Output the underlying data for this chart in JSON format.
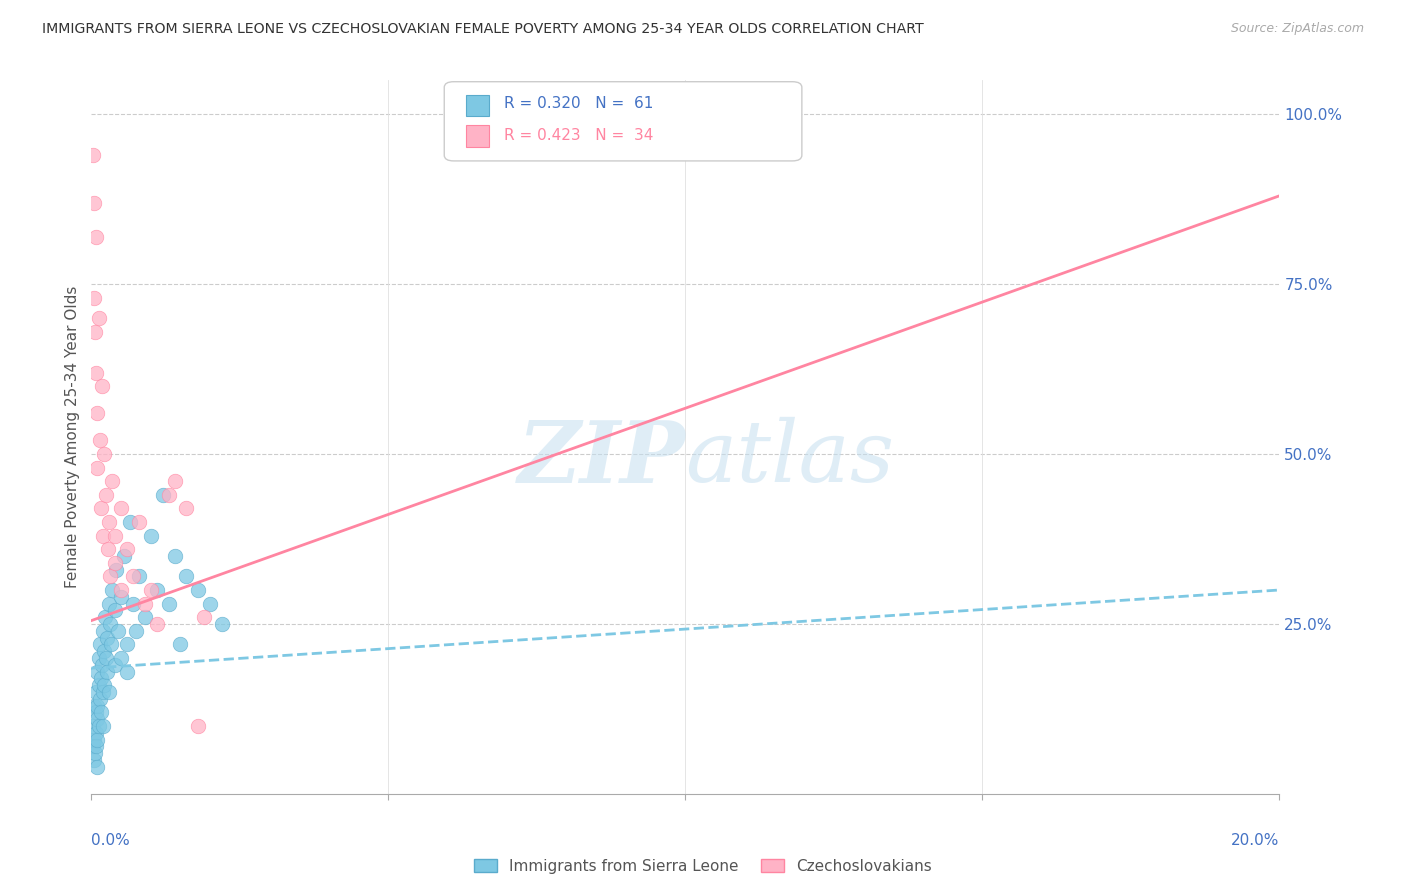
{
  "title": "IMMIGRANTS FROM SIERRA LEONE VS CZECHOSLOVAKIAN FEMALE POVERTY AMONG 25-34 YEAR OLDS CORRELATION CHART",
  "source": "Source: ZipAtlas.com",
  "ylabel": "Female Poverty Among 25-34 Year Olds",
  "legend_blue_r": "R = 0.320",
  "legend_blue_n": "N =  61",
  "legend_pink_r": "R = 0.423",
  "legend_pink_n": "N =  34",
  "blue_color": "#7ec8e3",
  "blue_edge": "#5aabcc",
  "pink_color": "#ffb3c6",
  "pink_edge": "#ff85a1",
  "blue_line_color": "#7ec8e3",
  "pink_line_color": "#ff85a1",
  "title_color": "#333333",
  "axis_color": "#4472c4",
  "grid_color": "#cccccc",
  "watermark_color": "#c5dff0",
  "xmin": 0.0,
  "xmax": 0.2,
  "ymin": 0.0,
  "ymax": 1.05,
  "blue_line_x0": 0.0,
  "blue_line_x1": 0.2,
  "blue_line_y0": 0.185,
  "blue_line_y1": 0.3,
  "pink_line_x0": 0.0,
  "pink_line_x1": 0.2,
  "pink_line_y0": 0.255,
  "pink_line_y1": 0.88,
  "sl_x": [
    0.0003,
    0.0003,
    0.0004,
    0.0005,
    0.0005,
    0.0006,
    0.0007,
    0.0007,
    0.0008,
    0.0008,
    0.0009,
    0.0009,
    0.001,
    0.001,
    0.001,
    0.0012,
    0.0013,
    0.0013,
    0.0014,
    0.0015,
    0.0016,
    0.0017,
    0.0018,
    0.0019,
    0.002,
    0.002,
    0.0021,
    0.0022,
    0.0023,
    0.0025,
    0.0026,
    0.0027,
    0.003,
    0.003,
    0.0031,
    0.0033,
    0.0035,
    0.004,
    0.004,
    0.0042,
    0.0045,
    0.005,
    0.005,
    0.0055,
    0.006,
    0.006,
    0.0065,
    0.007,
    0.0075,
    0.008,
    0.009,
    0.01,
    0.011,
    0.012,
    0.013,
    0.014,
    0.015,
    0.016,
    0.018,
    0.02,
    0.022
  ],
  "sl_y": [
    0.1,
    0.07,
    0.05,
    0.08,
    0.13,
    0.06,
    0.09,
    0.12,
    0.07,
    0.15,
    0.11,
    0.04,
    0.13,
    0.18,
    0.08,
    0.16,
    0.1,
    0.2,
    0.14,
    0.22,
    0.17,
    0.12,
    0.19,
    0.15,
    0.24,
    0.1,
    0.21,
    0.16,
    0.26,
    0.2,
    0.18,
    0.23,
    0.28,
    0.15,
    0.25,
    0.22,
    0.3,
    0.27,
    0.19,
    0.33,
    0.24,
    0.2,
    0.29,
    0.35,
    0.22,
    0.18,
    0.4,
    0.28,
    0.24,
    0.32,
    0.26,
    0.38,
    0.3,
    0.44,
    0.28,
    0.35,
    0.22,
    0.32,
    0.3,
    0.28,
    0.25
  ],
  "cz_x": [
    0.0003,
    0.0004,
    0.0005,
    0.0006,
    0.0007,
    0.0008,
    0.001,
    0.001,
    0.0012,
    0.0014,
    0.0016,
    0.0018,
    0.002,
    0.0022,
    0.0025,
    0.0028,
    0.003,
    0.0032,
    0.0035,
    0.004,
    0.004,
    0.005,
    0.005,
    0.006,
    0.007,
    0.008,
    0.009,
    0.01,
    0.011,
    0.013,
    0.014,
    0.016,
    0.018,
    0.019
  ],
  "cz_y": [
    0.94,
    0.87,
    0.73,
    0.68,
    0.82,
    0.62,
    0.56,
    0.48,
    0.7,
    0.52,
    0.42,
    0.6,
    0.38,
    0.5,
    0.44,
    0.36,
    0.4,
    0.32,
    0.46,
    0.34,
    0.38,
    0.42,
    0.3,
    0.36,
    0.32,
    0.4,
    0.28,
    0.3,
    0.25,
    0.44,
    0.46,
    0.42,
    0.1,
    0.26
  ]
}
